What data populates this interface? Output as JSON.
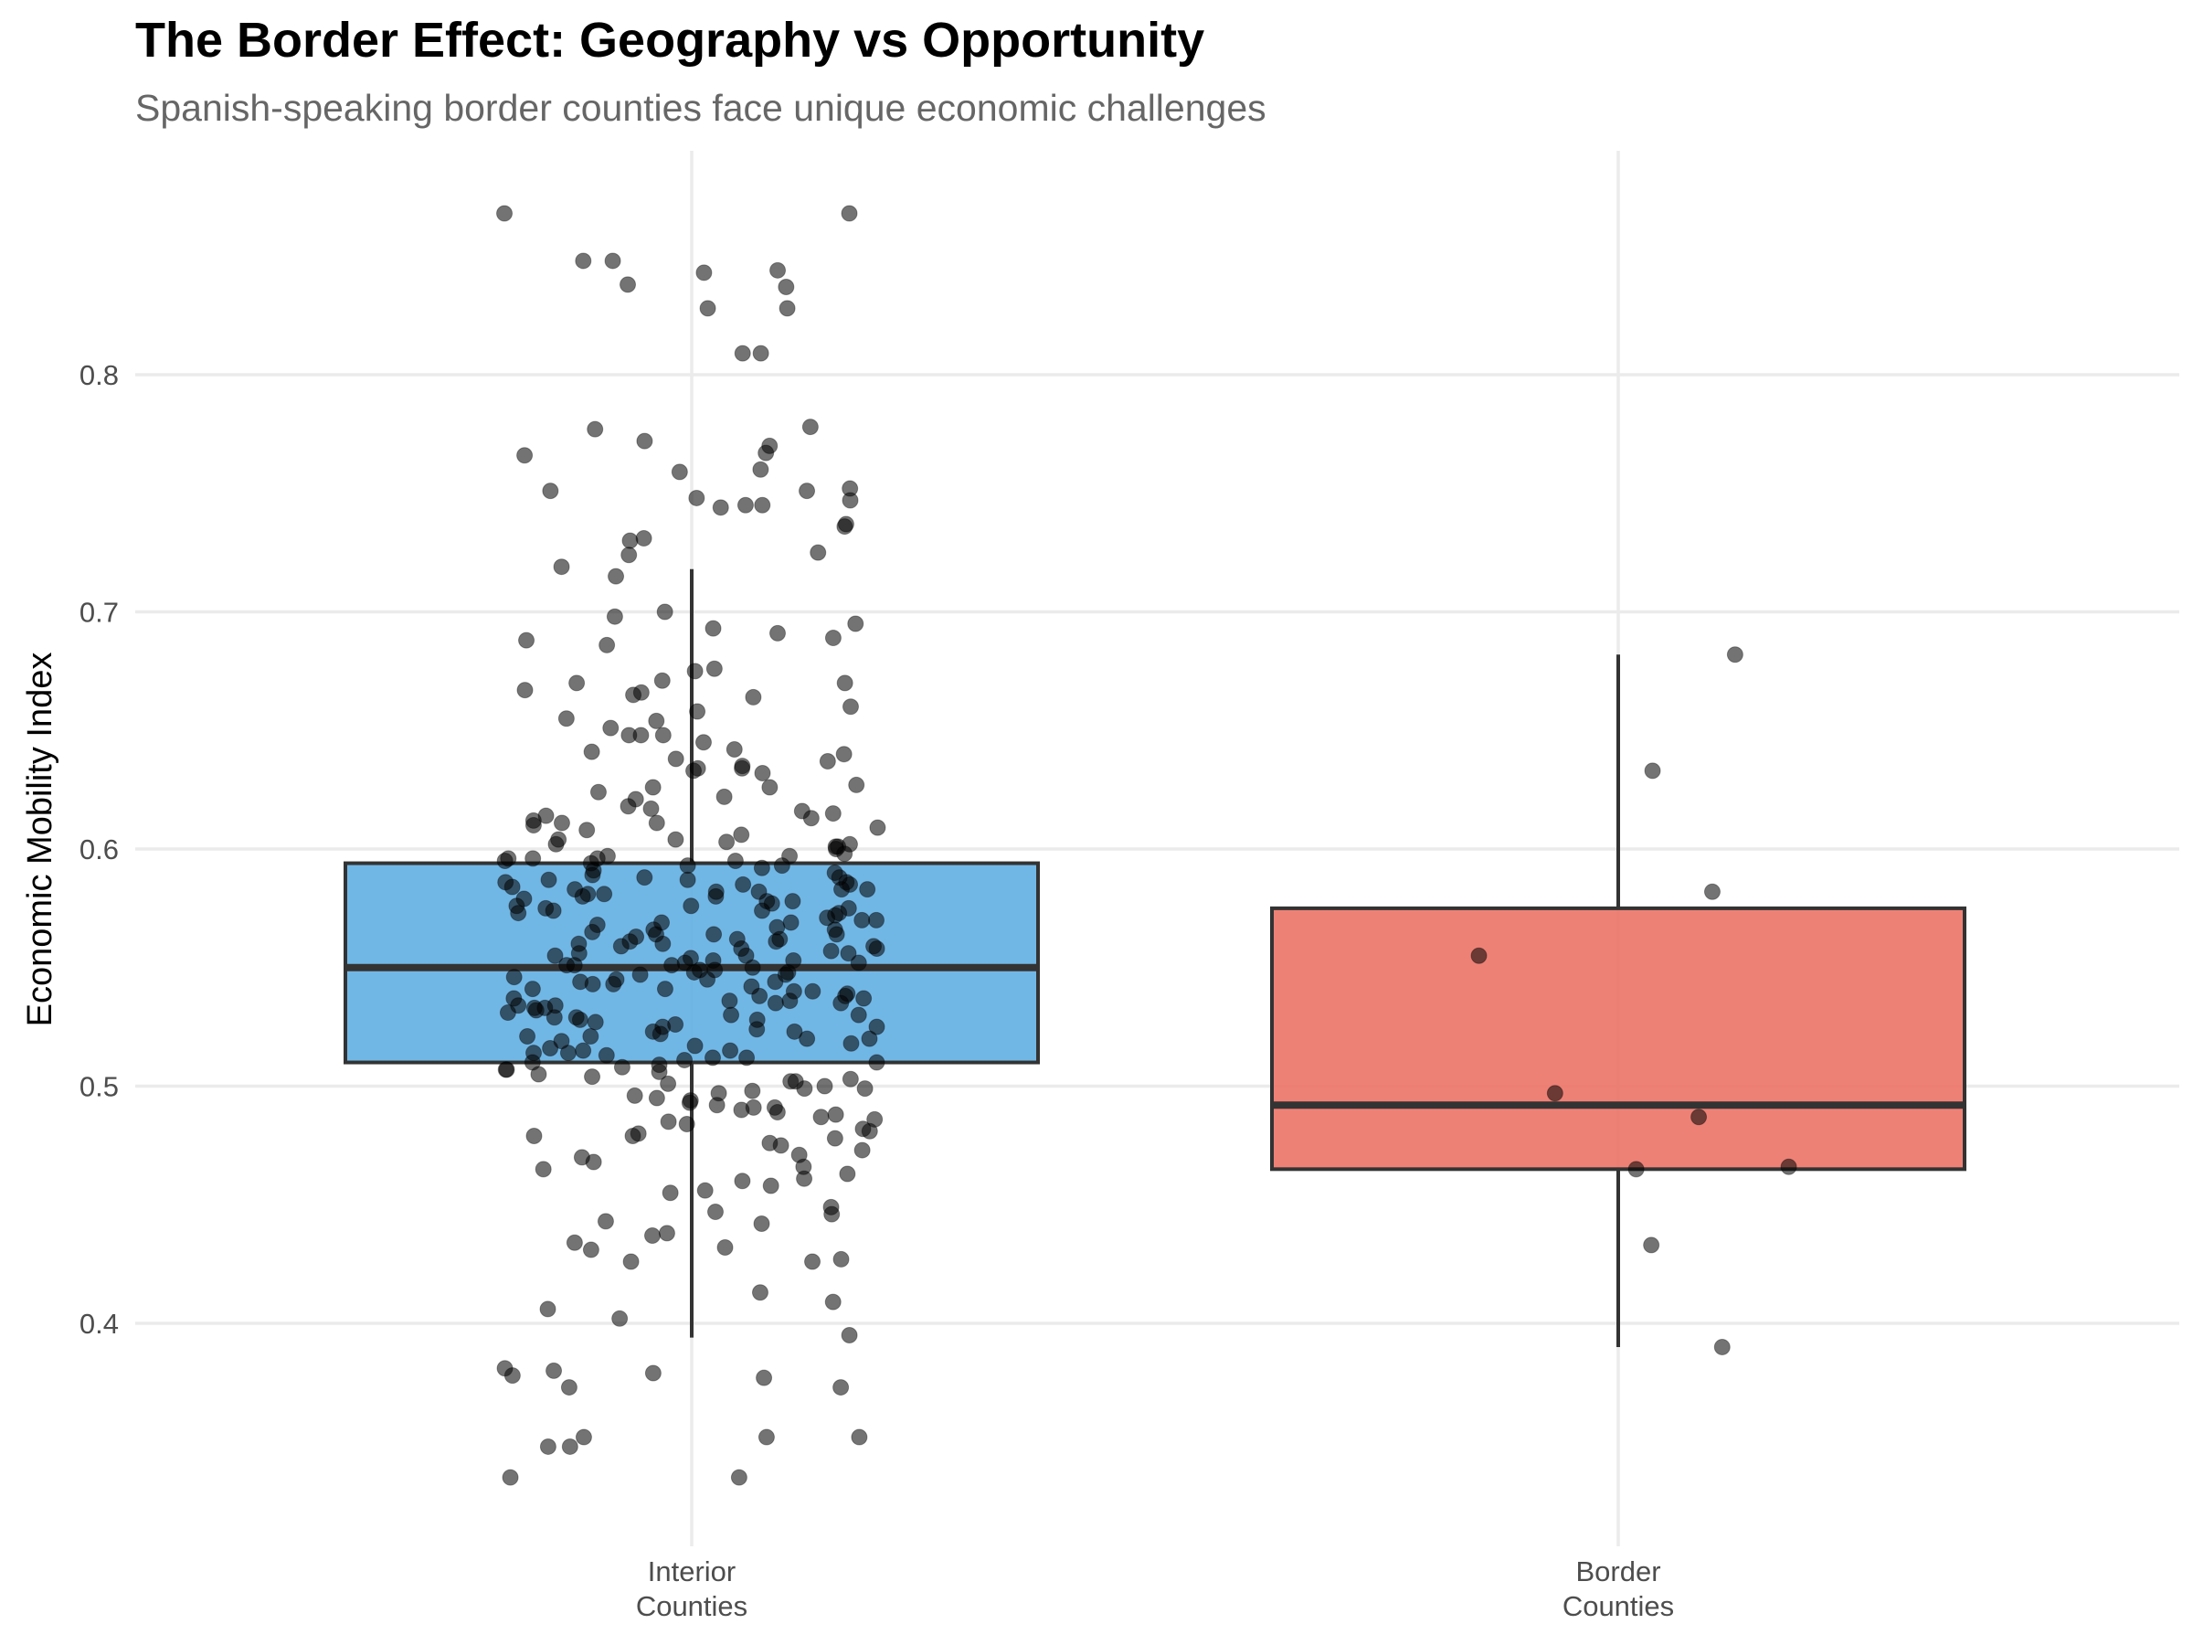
{
  "chart_data": {
    "type": "box",
    "title": "The Border Effect: Geography vs Opportunity",
    "subtitle": "Spanish-speaking border counties face unique economic challenges",
    "xlabel": "",
    "ylabel": "Economic Mobility Index",
    "ylim": [
      0.31,
      0.87
    ],
    "yticks": [
      "0.4",
      "0.5",
      "0.6",
      "0.7",
      "0.8"
    ],
    "grid": true,
    "legend": "none",
    "categories": [
      {
        "label_lines": [
          "Interior",
          "Counties"
        ],
        "color": "#5DADE2"
      },
      {
        "label_lines": [
          "Border",
          "Counties"
        ],
        "color": "#EC7063"
      }
    ],
    "boxes": [
      {
        "q1": 0.51,
        "median": 0.55,
        "q3": 0.594,
        "whisker_low": 0.394,
        "whisker_high": 0.718
      },
      {
        "q1": 0.465,
        "median": 0.492,
        "q3": 0.575,
        "whisker_low": 0.39,
        "whisker_high": 0.682
      }
    ],
    "points": [
      {
        "group": 0,
        "values": [
          0.868,
          0.868,
          0.848,
          0.848,
          0.844,
          0.843,
          0.838,
          0.837,
          0.828,
          0.828,
          0.809,
          0.809,
          0.778,
          0.777,
          0.772,
          0.77,
          0.767,
          0.766,
          0.76,
          0.759,
          0.752,
          0.751,
          0.751,
          0.748,
          0.747,
          0.745,
          0.745,
          0.744,
          0.737,
          0.736,
          0.731,
          0.73,
          0.725,
          0.724,
          0.719,
          0.715,
          0.7,
          0.698,
          0.695,
          0.693,
          0.691,
          0.689,
          0.688,
          0.686,
          0.676,
          0.675,
          0.671,
          0.67,
          0.67,
          0.667,
          0.666,
          0.665,
          0.664,
          0.66,
          0.658,
          0.655,
          0.654,
          0.651,
          0.648,
          0.648,
          0.648,
          0.645,
          0.642,
          0.641,
          0.64,
          0.638,
          0.637,
          0.635,
          0.634,
          0.634,
          0.633,
          0.632,
          0.627,
          0.626,
          0.626,
          0.624,
          0.622,
          0.621,
          0.618,
          0.617,
          0.616,
          0.615,
          0.614,
          0.613,
          0.612,
          0.611,
          0.611,
          0.61,
          0.609,
          0.608,
          0.606,
          0.604,
          0.604,
          0.603,
          0.602,
          0.602,
          0.601,
          0.601,
          0.6,
          0.598,
          0.597,
          0.597,
          0.596,
          0.596,
          0.596,
          0.595,
          0.595,
          0.594,
          0.593,
          0.593,
          0.592,
          0.591,
          0.59,
          0.589,
          0.588,
          0.588,
          0.587,
          0.587,
          0.586,
          0.586,
          0.585,
          0.585,
          0.584,
          0.583,
          0.583,
          0.583,
          0.582,
          0.582,
          0.581,
          0.581,
          0.58,
          0.58,
          0.579,
          0.578,
          0.578,
          0.577,
          0.576,
          0.576,
          0.575,
          0.575,
          0.574,
          0.574,
          0.573,
          0.573,
          0.572,
          0.571,
          0.57,
          0.57,
          0.569,
          0.569,
          0.568,
          0.567,
          0.566,
          0.566,
          0.565,
          0.564,
          0.564,
          0.564,
          0.563,
          0.562,
          0.562,
          0.561,
          0.561,
          0.56,
          0.56,
          0.559,
          0.559,
          0.558,
          0.558,
          0.557,
          0.556,
          0.556,
          0.555,
          0.555,
          0.554,
          0.553,
          0.553,
          0.552,
          0.552,
          0.551,
          0.551,
          0.551,
          0.55,
          0.549,
          0.549,
          0.548,
          0.548,
          0.547,
          0.547,
          0.546,
          0.545,
          0.545,
          0.544,
          0.544,
          0.543,
          0.543,
          0.542,
          0.541,
          0.541,
          0.54,
          0.54,
          0.539,
          0.538,
          0.538,
          0.537,
          0.537,
          0.536,
          0.536,
          0.535,
          0.535,
          0.534,
          0.534,
          0.533,
          0.533,
          0.532,
          0.531,
          0.53,
          0.53,
          0.529,
          0.529,
          0.528,
          0.528,
          0.527,
          0.526,
          0.525,
          0.525,
          0.524,
          0.523,
          0.523,
          0.522,
          0.521,
          0.521,
          0.52,
          0.52,
          0.519,
          0.518,
          0.517,
          0.516,
          0.515,
          0.515,
          0.514,
          0.514,
          0.513,
          0.512,
          0.512,
          0.511,
          0.51,
          0.51,
          0.509,
          0.508,
          0.507,
          0.507,
          0.506,
          0.505,
          0.504,
          0.503,
          0.502,
          0.502,
          0.501,
          0.5,
          0.499,
          0.499,
          0.498,
          0.497,
          0.496,
          0.495,
          0.494,
          0.493,
          0.492,
          0.491,
          0.491,
          0.49,
          0.489,
          0.488,
          0.487,
          0.486,
          0.485,
          0.484,
          0.482,
          0.481,
          0.48,
          0.479,
          0.479,
          0.478,
          0.476,
          0.475,
          0.473,
          0.471,
          0.47,
          0.468,
          0.466,
          0.465,
          0.463,
          0.461,
          0.46,
          0.458,
          0.456,
          0.455,
          0.449,
          0.447,
          0.446,
          0.443,
          0.442,
          0.438,
          0.437,
          0.434,
          0.432,
          0.431,
          0.427,
          0.426,
          0.426,
          0.413,
          0.409,
          0.406,
          0.402,
          0.395,
          0.381,
          0.38,
          0.379,
          0.378,
          0.377,
          0.373,
          0.373,
          0.352,
          0.352,
          0.352,
          0.348,
          0.348,
          0.335,
          0.335
        ]
      },
      {
        "group": 1,
        "values": [
          0.682,
          0.633,
          0.582,
          0.555,
          0.497,
          0.487,
          0.466,
          0.465,
          0.433,
          0.39
        ]
      }
    ]
  }
}
